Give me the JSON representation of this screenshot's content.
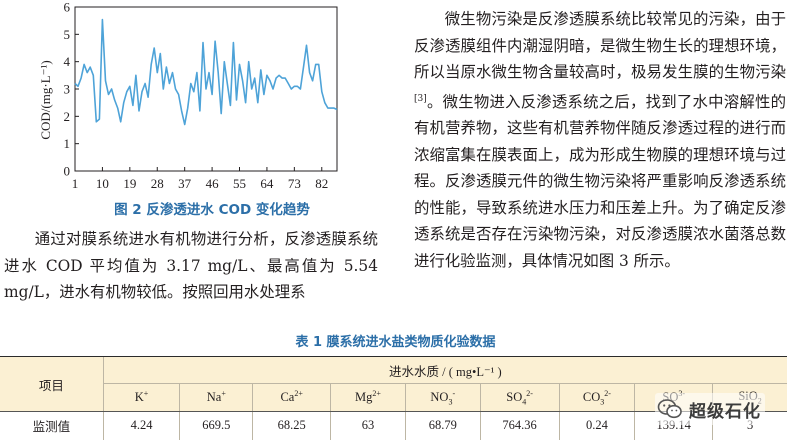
{
  "figure": {
    "caption": "图 2   反渗透进水 COD 变化趋势",
    "chart_data": {
      "type": "line",
      "title": "",
      "xlabel": "",
      "ylabel": "COD/(mg·L⁻¹)",
      "ylim": [
        0,
        6
      ],
      "xlim": [
        1,
        87
      ],
      "y_ticks": [
        0,
        1,
        2,
        3,
        4,
        5,
        6
      ],
      "x_ticks": [
        1,
        10,
        19,
        28,
        37,
        46,
        55,
        64,
        73,
        82
      ],
      "series": [
        {
          "color": "#4ea3d8",
          "x": [
            1,
            2,
            3,
            4,
            5,
            6,
            7,
            8,
            9,
            10,
            11,
            12,
            13,
            14,
            15,
            16,
            17,
            18,
            19,
            20,
            21,
            22,
            23,
            24,
            25,
            26,
            27,
            28,
            29,
            30,
            31,
            32,
            33,
            34,
            35,
            36,
            37,
            38,
            39,
            40,
            41,
            42,
            43,
            44,
            45,
            46,
            47,
            48,
            49,
            50,
            51,
            52,
            53,
            54,
            55,
            56,
            57,
            58,
            59,
            60,
            61,
            62,
            63,
            64,
            65,
            66,
            67,
            68,
            69,
            70,
            71,
            72,
            73,
            74,
            75,
            76,
            77,
            78,
            79,
            80,
            81,
            82,
            83,
            84,
            85,
            86,
            87
          ],
          "values": [
            3.2,
            3.1,
            3.4,
            3.9,
            3.6,
            3.8,
            3.5,
            1.8,
            1.9,
            5.54,
            3.3,
            2.8,
            3.0,
            2.6,
            2.3,
            1.8,
            2.5,
            2.9,
            3.1,
            2.4,
            3.5,
            2.2,
            2.9,
            3.2,
            2.7,
            3.9,
            4.5,
            3.6,
            4.3,
            3.0,
            3.8,
            3.2,
            3.6,
            3.0,
            2.8,
            2.2,
            1.7,
            2.3,
            3.2,
            2.9,
            3.6,
            2.2,
            4.7,
            3.0,
            3.6,
            2.8,
            4.75,
            3.6,
            2.1,
            4.0,
            3.2,
            2.4,
            4.7,
            2.6,
            3.9,
            3.3,
            2.5,
            4.0,
            3.0,
            3.4,
            2.5,
            3.7,
            2.8,
            3.5,
            3.3,
            3.0,
            3.4,
            3.5,
            3.4,
            3.4,
            3.2,
            3.0,
            3.1,
            3.1,
            3.0,
            3.8,
            4.6,
            3.6,
            3.3,
            3.9,
            3.9,
            2.9,
            2.5,
            2.3,
            2.3,
            2.3,
            2.25
          ]
        }
      ]
    }
  },
  "left_paragraph": "通过对膜系统进水有机物进行分析，反渗透膜系统进水 COD 平均值为 3.17 mg/L、最高值为 5.54 mg/L，进水有机物较低。按照回用水处理系",
  "right_paragraph": {
    "part1": "微生物污染是反渗透膜系统比较常见的污染，由于反渗透膜组件内潮湿阴暗，是微生物生长的理想环境，所以当原水微生物含量较高时，极易发生膜的生物污染",
    "ref": "[3]",
    "part2": "。微生物进入反渗透系统之后，找到了水中溶解性的有机营养物，这些有机营养物伴随反渗透过程的进行而浓缩富集在膜表面上，成为形成生物膜的理想环境与过程。反渗透膜元件的微生物污染将严重影响反渗透系统的性能，导致系统进水压力和压差上升。为了确定反渗透系统是否存在污染物污染，对反渗透膜浓水菌落总数进行化验监测，具体情况如图 3 所示。"
  },
  "table": {
    "title": "表 1   膜系统进水盐类物质化验数据",
    "row_header": "项目",
    "group_header": "进水水质 / ( mg•L⁻¹ )",
    "columns": [
      "K",
      "Na",
      "Ca",
      "Mg",
      "NO",
      "SO",
      "CO",
      "SO",
      "SiO"
    ],
    "column_sup": [
      "+",
      "+",
      "2+",
      "2+",
      "-",
      "2-",
      "2-",
      "3-",
      ""
    ],
    "column_sub": [
      "",
      "",
      "",
      "",
      "3",
      "4",
      "3",
      "",
      "2"
    ],
    "row_label": "监测值",
    "values": [
      "4.24",
      "669.5",
      "68.25",
      "63",
      "68.79",
      "764.36",
      "0.24",
      "139.14",
      "3"
    ]
  },
  "watermark": {
    "text": "超级石化",
    "icon": "wechat-icon"
  }
}
